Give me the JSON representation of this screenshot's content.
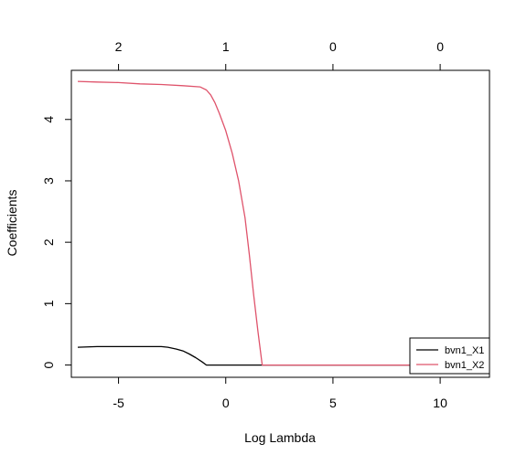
{
  "chart_data": {
    "type": "line",
    "title": "",
    "xlabel": "Log Lambda",
    "ylabel": "Coefficients",
    "xlim": [
      -7.2,
      12.3
    ],
    "ylim": [
      -0.2,
      4.8
    ],
    "x_ticks": [
      -5,
      0,
      5,
      10
    ],
    "x_tick_labels": [
      "-5",
      "0",
      "5",
      "10"
    ],
    "y_ticks": [
      0,
      1,
      2,
      3,
      4
    ],
    "y_tick_labels": [
      "0",
      "1",
      "2",
      "3",
      "4"
    ],
    "top_axis": {
      "ticks": [
        -5,
        0,
        5,
        10
      ],
      "labels": [
        "2",
        "1",
        "0",
        "0"
      ]
    },
    "grid": false,
    "legend_position": "bottom-right",
    "series": [
      {
        "name": "bvn1_X1",
        "color": "#000000",
        "x": [
          -6.9,
          -6.0,
          -5.0,
          -4.0,
          -3.0,
          -2.7,
          -2.3,
          -2.0,
          -1.7,
          -1.4,
          -1.1,
          -0.9,
          0.0,
          1.0,
          1.7,
          10.5
        ],
        "y": [
          0.29,
          0.3,
          0.3,
          0.3,
          0.3,
          0.29,
          0.26,
          0.23,
          0.18,
          0.12,
          0.05,
          0.0,
          0.0,
          0.0,
          0.0,
          0.0
        ]
      },
      {
        "name": "bvn1_X2",
        "color": "#DF536B",
        "x": [
          -6.9,
          -6.0,
          -5.0,
          -4.0,
          -3.0,
          -2.0,
          -1.2,
          -0.9,
          -0.7,
          -0.5,
          -0.3,
          0.0,
          0.3,
          0.6,
          0.9,
          1.1,
          1.3,
          1.5,
          1.7,
          5.0,
          10.5
        ],
        "y": [
          4.62,
          4.61,
          4.6,
          4.58,
          4.57,
          4.55,
          4.53,
          4.48,
          4.4,
          4.27,
          4.1,
          3.82,
          3.45,
          3.0,
          2.4,
          1.8,
          1.15,
          0.55,
          0.0,
          0.0,
          0.0
        ]
      }
    ]
  }
}
